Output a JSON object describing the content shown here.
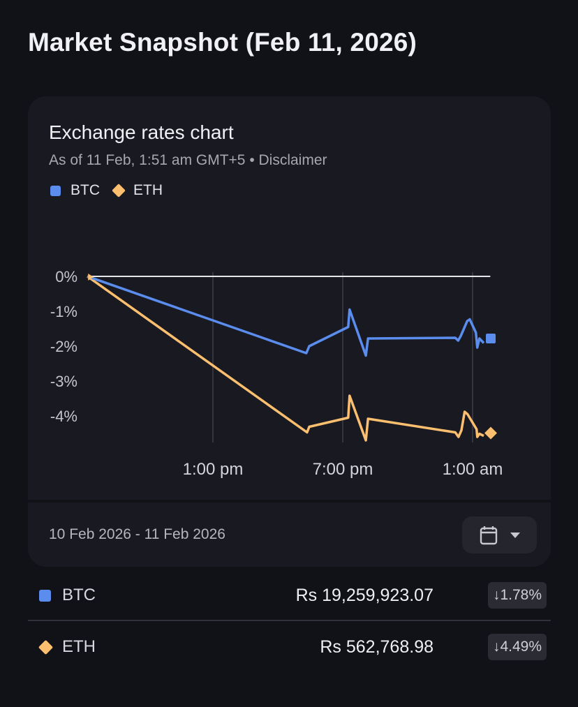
{
  "page": {
    "title": "Market Snapshot (Feb 11, 2026)"
  },
  "card": {
    "title": "Exchange rates chart",
    "subtitle": "As of 11 Feb, 1:51 am GMT+5 • Disclaimer",
    "date_range": "10 Feb 2026 - 11 Feb 2026",
    "calendar_icon": "calendar-icon",
    "dropdown_icon": "caret-down-icon"
  },
  "colors": {
    "BTC": "#5b8def",
    "ETH": "#fcbf6f",
    "background": "#111217",
    "card": "#191a21"
  },
  "chart_data": {
    "type": "line",
    "title": "",
    "xlabel": "",
    "ylabel": "",
    "x_ticks": [
      {
        "label": "1:00 pm",
        "time": "2026-02-10T13:00"
      },
      {
        "label": "7:00 pm",
        "time": "2026-02-10T19:00"
      },
      {
        "label": "1:00 am",
        "time": "2026-02-11T01:00"
      }
    ],
    "y_ticks": [
      {
        "label": "0%",
        "value": 0
      },
      {
        "label": "-1%",
        "value": -1
      },
      {
        "label": "-2%",
        "value": -2
      },
      {
        "label": "-3%",
        "value": -3
      },
      {
        "label": "-4%",
        "value": -4
      }
    ],
    "ylim": [
      -4.8,
      0.2
    ],
    "reference_line": 0,
    "grid": "vertical",
    "legend": "top-left",
    "series": [
      {
        "name": "BTC",
        "marker": "square",
        "last": {
          "time": "2026-02-11T01:51",
          "value": -1.78
        },
        "points": [
          [
            "2026-02-10T07:12",
            0
          ],
          [
            "2026-02-10T17:19",
            -2.2
          ],
          [
            "2026-02-10T17:27",
            -2.0
          ],
          [
            "2026-02-10T19:15",
            -1.45
          ],
          [
            "2026-02-10T19:19",
            -0.95
          ],
          [
            "2026-02-10T20:04",
            -2.27
          ],
          [
            "2026-02-10T20:10",
            -1.78
          ],
          [
            "2026-02-11T00:12",
            -1.76
          ],
          [
            "2026-02-11T00:20",
            -1.84
          ],
          [
            "2026-02-11T00:27",
            -1.71
          ],
          [
            "2026-02-11T00:45",
            -1.28
          ],
          [
            "2026-02-11T00:52",
            -1.23
          ],
          [
            "2026-02-11T01:09",
            -1.61
          ],
          [
            "2026-02-11T01:13",
            -2.04
          ],
          [
            "2026-02-11T01:19",
            -1.78
          ],
          [
            "2026-02-11T01:31",
            -1.91
          ]
        ]
      },
      {
        "name": "ETH",
        "marker": "diamond",
        "last": {
          "time": "2026-02-11T01:51",
          "value": -4.49
        },
        "points": [
          [
            "2026-02-10T07:12",
            0
          ],
          [
            "2026-02-10T17:21",
            -4.47
          ],
          [
            "2026-02-10T17:27",
            -4.31
          ],
          [
            "2026-02-10T19:15",
            -4.05
          ],
          [
            "2026-02-10T19:19",
            -3.42
          ],
          [
            "2026-02-10T20:04",
            -4.7
          ],
          [
            "2026-02-10T20:10",
            -4.08
          ],
          [
            "2026-02-11T00:12",
            -4.47
          ],
          [
            "2026-02-11T00:21",
            -4.6
          ],
          [
            "2026-02-11T00:29",
            -4.41
          ],
          [
            "2026-02-11T00:38",
            -3.88
          ],
          [
            "2026-02-11T00:46",
            -3.95
          ],
          [
            "2026-02-11T01:11",
            -4.38
          ],
          [
            "2026-02-11T01:13",
            -4.6
          ],
          [
            "2026-02-11T01:19",
            -4.51
          ],
          [
            "2026-02-11T01:31",
            -4.57
          ]
        ]
      }
    ]
  },
  "rows": [
    {
      "symbol": "BTC",
      "price": "Rs 19,259,923.07",
      "change": "↓1.78%"
    },
    {
      "symbol": "ETH",
      "price": "Rs 562,768.98",
      "change": "↓4.49%"
    }
  ]
}
